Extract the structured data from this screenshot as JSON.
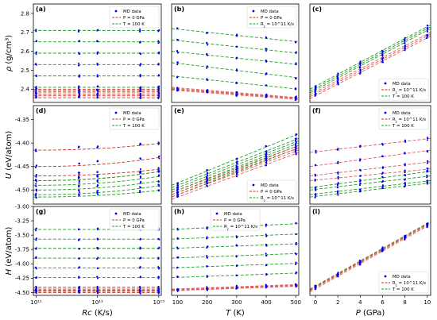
{
  "figure": {
    "colors": {
      "md": "#0000ee",
      "pressure_line": "#c8321e",
      "rc_line": "#e85a5a",
      "temp_line": "#1f9e1f",
      "frame": "#000000"
    }
  },
  "chart_data": [
    {
      "id": "a",
      "label": "(a)",
      "type": "scatter",
      "xscale": "log",
      "xlim": [
        90000000000,
        11000000000000
      ],
      "ylim": [
        2.33,
        2.85
      ],
      "yticks": [
        "2.4",
        "2.5",
        "2.6",
        "2.7",
        "2.8"
      ],
      "ytick_values": [
        2.4,
        2.5,
        2.6,
        2.7,
        2.8
      ],
      "xticks": [],
      "ylabel": "ρ (g/cm³)",
      "xlabel": "",
      "x": [
        100000000000,
        500000000000,
        1000000000000,
        5000000000000,
        10000000000000
      ],
      "levels_green": [
        2.41,
        2.47,
        2.53,
        2.59,
        2.65,
        2.71
      ],
      "levels_red": [
        2.355,
        2.365,
        2.375,
        2.385,
        2.393,
        2.4
      ],
      "legend": [
        {
          "kind": "marker",
          "text": "MD data"
        },
        {
          "kind": "red",
          "text": "P = 0 GPa"
        },
        {
          "kind": "green",
          "text": "T = 100 K"
        }
      ],
      "legend_pos": "top-right"
    },
    {
      "id": "b",
      "label": "(b)",
      "type": "scatter",
      "xlim": [
        80,
        510
      ],
      "ylim": [
        2.33,
        2.85
      ],
      "yticks": [],
      "xticks": [],
      "x": [
        100,
        200,
        300,
        400,
        500
      ],
      "lines_green": [
        [
          2.72,
          2.65
        ],
        [
          2.66,
          2.59
        ],
        [
          2.6,
          2.53
        ],
        [
          2.54,
          2.46
        ],
        [
          2.47,
          2.4
        ],
        [
          2.4,
          2.35
        ]
      ],
      "lines_red": [
        [
          2.395,
          2.345
        ],
        [
          2.4,
          2.35
        ],
        [
          2.405,
          2.352
        ],
        [
          2.41,
          2.355
        ]
      ],
      "legend": [
        {
          "kind": "marker",
          "text": "MD data"
        },
        {
          "kind": "red",
          "text": "P = 0 GPa"
        },
        {
          "kind": "green",
          "text": "R_c = 10^11 K/s"
        }
      ],
      "legend_pos": "top-right"
    },
    {
      "id": "c",
      "label": "(c)",
      "type": "scatter",
      "xlim": [
        -0.5,
        10.3
      ],
      "ylim": [
        2.33,
        2.85
      ],
      "yticks": [],
      "xticks": [],
      "x": [
        0,
        2,
        4,
        6,
        8,
        10
      ],
      "lines_green": [
        [
          2.4,
          2.74
        ],
        [
          2.39,
          2.73
        ],
        [
          2.38,
          2.72
        ]
      ],
      "lines_red": [
        [
          2.37,
          2.7
        ],
        [
          2.36,
          2.69
        ],
        [
          2.35,
          2.68
        ]
      ],
      "legend": [
        {
          "kind": "marker",
          "text": "MD data"
        },
        {
          "kind": "red",
          "text": "R_c = 10^11 K/s"
        },
        {
          "kind": "green",
          "text": "T = 100 K"
        }
      ],
      "legend_pos": "bottom-right"
    },
    {
      "id": "d",
      "label": "(d)",
      "type": "scatter",
      "xscale": "log",
      "xlim": [
        90000000000,
        11000000000000
      ],
      "ylim": [
        -4.53,
        -4.32
      ],
      "yticks": [
        "-4.35",
        "-4.40",
        "-4.45",
        "-4.50"
      ],
      "ytick_values": [
        -4.35,
        -4.4,
        -4.45,
        -4.5
      ],
      "xticks": [],
      "ylabel": "U (eV/atom)",
      "xlabel": "",
      "x": [
        100000000000,
        500000000000,
        1000000000000,
        5000000000000,
        10000000000000
      ],
      "curves_red": [
        [
          -4.415,
          -4.4
        ],
        [
          -4.45,
          -4.43
        ],
        [
          -4.47,
          -4.455
        ],
        [
          -4.48,
          -4.46
        ]
      ],
      "curves_green": [
        [
          -4.48,
          -4.46
        ],
        [
          -4.49,
          -4.47
        ],
        [
          -4.5,
          -4.48
        ],
        [
          -4.51,
          -4.49
        ],
        [
          -4.515,
          -4.5
        ]
      ],
      "legend": [
        {
          "kind": "marker",
          "text": "MD data"
        },
        {
          "kind": "red",
          "text": "P = 0 GPa"
        },
        {
          "kind": "green",
          "text": "T = 100 K"
        }
      ],
      "legend_pos": "top-right"
    },
    {
      "id": "e",
      "label": "(e)",
      "type": "scatter",
      "xlim": [
        80,
        510
      ],
      "ylim": [
        -4.53,
        -4.32
      ],
      "yticks": [],
      "xticks": [],
      "x": [
        100,
        200,
        300,
        400,
        500
      ],
      "lines_green": [
        [
          -4.49,
          -4.38
        ],
        [
          -4.495,
          -4.39
        ],
        [
          -4.5,
          -4.395
        ],
        [
          -4.505,
          -4.4
        ],
        [
          -4.51,
          -4.405
        ],
        [
          -4.515,
          -4.41
        ]
      ],
      "lines_red": [
        [
          -4.505,
          -4.405
        ],
        [
          -4.51,
          -4.41
        ],
        [
          -4.515,
          -4.415
        ],
        [
          -4.52,
          -4.42
        ]
      ],
      "legend": [
        {
          "kind": "marker",
          "text": "MD data"
        },
        {
          "kind": "red",
          "text": "P = 0 GPa"
        },
        {
          "kind": "green",
          "text": "R_c = 10^11 K/s"
        }
      ],
      "legend_pos": "bottom-right"
    },
    {
      "id": "f",
      "label": "(f)",
      "type": "scatter",
      "xlim": [
        -0.5,
        10.3
      ],
      "ylim": [
        -4.53,
        -4.32
      ],
      "yticks": [],
      "xticks": [],
      "x": [
        0,
        2,
        4,
        6,
        8,
        10
      ],
      "lines_red": [
        [
          -4.42,
          -4.39
        ],
        [
          -4.45,
          -4.415
        ],
        [
          -4.47,
          -4.44
        ],
        [
          -4.48,
          -4.455
        ]
      ],
      "lines_green": [
        [
          -4.495,
          -4.46
        ],
        [
          -4.5,
          -4.47
        ],
        [
          -4.51,
          -4.48
        ],
        [
          -4.515,
          -4.485
        ]
      ],
      "legend": [
        {
          "kind": "marker",
          "text": "MD data"
        },
        {
          "kind": "red",
          "text": "R_c = 10^11 K/s"
        },
        {
          "kind": "green",
          "text": "T = 100 K"
        }
      ],
      "legend_pos": "top-right"
    },
    {
      "id": "g",
      "label": "(g)",
      "type": "scatter",
      "xscale": "log",
      "xlim": [
        90000000000,
        11000000000000
      ],
      "ylim": [
        -4.55,
        -3.0
      ],
      "yticks": [
        "-3.00",
        "-3.25",
        "-3.50",
        "-3.75",
        "-4.00",
        "-4.25",
        "-4.50"
      ],
      "ytick_values": [
        -3.0,
        -3.25,
        -3.5,
        -3.75,
        -4.0,
        -4.25,
        -4.5
      ],
      "xticks": [
        "10¹¹",
        "10¹²",
        "10¹³"
      ],
      "xtick_values": [
        100000000000,
        1000000000000,
        10000000000000
      ],
      "ylabel": "H (eV/atom)",
      "xlabel": "Rc (K/s)",
      "x": [
        100000000000,
        500000000000,
        1000000000000,
        5000000000000,
        10000000000000
      ],
      "levels_green": [
        -3.4,
        -3.57,
        -3.73,
        -3.9,
        -4.07,
        -4.24
      ],
      "levels_red": [
        -4.41,
        -4.44,
        -4.46,
        -4.48,
        -4.5
      ],
      "legend": [
        {
          "kind": "marker",
          "text": "MD data"
        },
        {
          "kind": "red",
          "text": "P = 0 GPa"
        },
        {
          "kind": "green",
          "text": "T = 100 K"
        }
      ],
      "legend_pos": "top-right"
    },
    {
      "id": "h",
      "label": "(h)",
      "type": "scatter",
      "xlim": [
        80,
        510
      ],
      "ylim": [
        -4.55,
        -3.0
      ],
      "yticks": [],
      "xticks": [
        "100",
        "200",
        "300",
        "400",
        "500"
      ],
      "xtick_values": [
        100,
        200,
        300,
        400,
        500
      ],
      "xlabel": "T (K)",
      "x": [
        100,
        200,
        300,
        400,
        500
      ],
      "lines_green": [
        [
          -3.4,
          -3.3
        ],
        [
          -3.57,
          -3.48
        ],
        [
          -3.73,
          -3.65
        ],
        [
          -3.9,
          -3.82
        ],
        [
          -4.07,
          -3.99
        ],
        [
          -4.24,
          -4.16
        ]
      ],
      "lines_red": [
        [
          -4.44,
          -4.36
        ],
        [
          -4.45,
          -4.37
        ],
        [
          -4.46,
          -4.38
        ],
        [
          -4.47,
          -4.39
        ]
      ],
      "legend": [
        {
          "kind": "marker",
          "text": "MD data"
        },
        {
          "kind": "red",
          "text": "P = 0 GPa"
        },
        {
          "kind": "green",
          "text": "R_c = 10^11 K/s"
        }
      ],
      "legend_pos": "top"
    },
    {
      "id": "i",
      "label": "(i)",
      "type": "scatter",
      "xlim": [
        -0.5,
        10.3
      ],
      "ylim": [
        -4.55,
        -3.0
      ],
      "yticks": [],
      "xticks": [
        "0",
        "2",
        "4",
        "6",
        "8",
        "10"
      ],
      "xtick_values": [
        0,
        2,
        4,
        6,
        8,
        10
      ],
      "xlabel": "P (GPa)",
      "x": [
        0,
        2,
        4,
        6,
        8,
        10
      ],
      "lines_green": [
        [
          -4.44,
          -3.26
        ],
        [
          -4.46,
          -3.28
        ]
      ],
      "lines_red": [
        [
          -4.45,
          -3.27
        ],
        [
          -4.47,
          -3.29
        ],
        [
          -4.49,
          -3.31
        ]
      ],
      "legend": [
        {
          "kind": "marker",
          "text": "MD data"
        },
        {
          "kind": "red",
          "text": "R_c = 10^11 K/s"
        },
        {
          "kind": "green",
          "text": "T = 100 K"
        }
      ],
      "legend_pos": "bottom-right"
    }
  ]
}
